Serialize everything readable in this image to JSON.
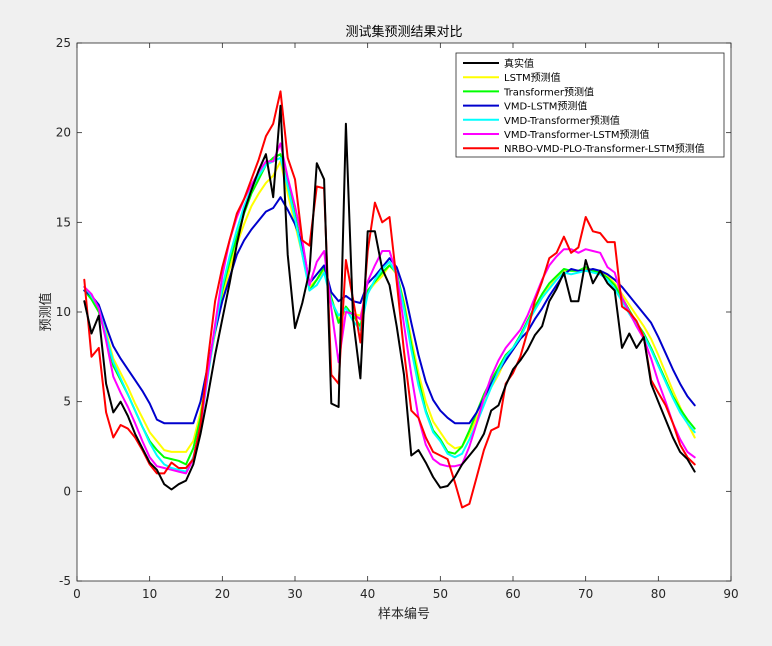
{
  "figure": {
    "background": "#f0f0f0",
    "axes_background": "#ffffff"
  },
  "chart_data": {
    "type": "line",
    "title": "测试集预测结果对比",
    "xlabel": "样本编号",
    "ylabel": "预测值",
    "xlim": [
      0,
      90
    ],
    "ylim": [
      -5,
      25
    ],
    "xticks": [
      0,
      10,
      20,
      30,
      40,
      50,
      60,
      70,
      80,
      90
    ],
    "yticks": [
      -5,
      0,
      5,
      10,
      15,
      20,
      25
    ],
    "grid": false,
    "legend_position": "top-right",
    "x": [
      1,
      2,
      3,
      4,
      5,
      6,
      7,
      8,
      9,
      10,
      11,
      12,
      13,
      14,
      15,
      16,
      17,
      18,
      19,
      20,
      21,
      22,
      23,
      24,
      25,
      26,
      27,
      28,
      29,
      30,
      31,
      32,
      33,
      34,
      35,
      36,
      37,
      38,
      39,
      40,
      41,
      42,
      43,
      44,
      45,
      46,
      47,
      48,
      49,
      50,
      51,
      52,
      53,
      54,
      55,
      56,
      57,
      58,
      59,
      60,
      61,
      62,
      63,
      64,
      65,
      66,
      67,
      68,
      69,
      70,
      71,
      72,
      73,
      74,
      75,
      76,
      77,
      78,
      79,
      80,
      81,
      82,
      83,
      84,
      85
    ],
    "series": [
      {
        "name": "真实值",
        "color": "#000000",
        "values": [
          10.6,
          8.8,
          9.8,
          6.0,
          4.4,
          5.0,
          4.2,
          3.2,
          2.4,
          1.6,
          1.2,
          0.4,
          0.1,
          0.4,
          0.6,
          1.5,
          3.2,
          5.3,
          7.6,
          9.6,
          11.6,
          13.8,
          15.6,
          16.8,
          17.9,
          18.8,
          16.4,
          21.5,
          13.2,
          9.1,
          10.5,
          12.3,
          18.3,
          17.4,
          4.9,
          4.7,
          20.5,
          9.6,
          6.3,
          14.5,
          14.5,
          12.4,
          11.5,
          9.2,
          6.5,
          2.0,
          2.3,
          1.6,
          0.8,
          0.2,
          0.3,
          0.8,
          1.5,
          2.0,
          2.5,
          3.2,
          4.5,
          4.8,
          5.9,
          6.8,
          7.3,
          7.9,
          8.7,
          9.2,
          10.6,
          11.3,
          12.2,
          10.6,
          10.6,
          12.9,
          11.6,
          12.3,
          11.6,
          11.2,
          8.0,
          8.8,
          8.0,
          8.6,
          6.0,
          5.0,
          4.0,
          3.0,
          2.2,
          1.8,
          1.1
        ]
      },
      {
        "name": "LSTM预测值",
        "color": "#ffff00",
        "values": [
          11.4,
          10.9,
          10.3,
          8.9,
          7.4,
          6.6,
          5.8,
          4.9,
          4.1,
          3.3,
          2.8,
          2.3,
          2.2,
          2.2,
          2.2,
          2.8,
          4.4,
          6.6,
          8.8,
          10.8,
          12.4,
          13.8,
          14.9,
          15.9,
          16.6,
          17.2,
          17.6,
          18.4,
          16.6,
          14.9,
          13.2,
          11.4,
          11.8,
          12.3,
          10.8,
          9.6,
          10.0,
          9.9,
          9.8,
          11.1,
          11.6,
          12.0,
          12.6,
          12.1,
          10.6,
          8.5,
          6.6,
          5.0,
          3.9,
          3.3,
          2.7,
          2.4,
          2.5,
          3.2,
          4.1,
          4.9,
          5.8,
          6.5,
          7.4,
          7.9,
          8.6,
          9.4,
          10.2,
          10.8,
          11.4,
          11.9,
          12.3,
          12.3,
          12.3,
          12.4,
          12.2,
          12.2,
          12.0,
          11.6,
          11.0,
          10.4,
          9.8,
          9.2,
          8.5,
          7.6,
          6.6,
          5.6,
          4.7,
          3.8,
          3.0
        ]
      },
      {
        "name": "Transformer预测值",
        "color": "#00ff00",
        "values": [
          11.2,
          10.7,
          10.0,
          8.6,
          7.0,
          6.2,
          5.4,
          4.5,
          3.6,
          2.8,
          2.3,
          1.9,
          1.8,
          1.7,
          1.5,
          2.4,
          4.1,
          6.6,
          9.0,
          11.2,
          12.8,
          14.2,
          15.5,
          16.6,
          17.4,
          18.2,
          18.6,
          18.8,
          17.2,
          15.4,
          13.4,
          11.2,
          11.8,
          12.5,
          10.8,
          9.4,
          10.3,
          9.8,
          9.2,
          11.2,
          11.7,
          12.2,
          12.6,
          12.2,
          10.4,
          8.2,
          6.2,
          4.5,
          3.4,
          2.9,
          2.2,
          2.1,
          2.5,
          3.4,
          4.4,
          5.4,
          6.2,
          6.9,
          7.6,
          8.0,
          8.7,
          9.5,
          10.3,
          11.0,
          11.6,
          12.0,
          12.4,
          12.3,
          12.3,
          12.5,
          12.3,
          12.2,
          11.9,
          11.5,
          10.8,
          10.1,
          9.4,
          8.8,
          8.0,
          7.1,
          6.2,
          5.3,
          4.6,
          4.0,
          3.5
        ]
      },
      {
        "name": "VMD-LSTM预测值",
        "color": "#0000cd",
        "values": [
          11.2,
          10.9,
          10.4,
          9.2,
          8.1,
          7.4,
          6.8,
          6.2,
          5.6,
          4.9,
          4.0,
          3.8,
          3.8,
          3.8,
          3.8,
          3.8,
          5.0,
          7.0,
          8.9,
          10.6,
          11.9,
          13.2,
          14.0,
          14.6,
          15.1,
          15.6,
          15.8,
          16.4,
          15.7,
          14.9,
          13.8,
          11.6,
          12.1,
          12.6,
          11.1,
          10.6,
          10.9,
          10.6,
          10.5,
          11.6,
          12.0,
          12.5,
          13.0,
          12.5,
          11.3,
          9.4,
          7.6,
          6.1,
          5.1,
          4.5,
          4.1,
          3.8,
          3.8,
          3.8,
          4.4,
          5.2,
          6.0,
          6.7,
          7.3,
          7.9,
          8.5,
          8.9,
          9.6,
          10.2,
          10.9,
          11.5,
          12.1,
          12.4,
          12.3,
          12.3,
          12.4,
          12.3,
          12.1,
          11.8,
          11.4,
          10.9,
          10.4,
          9.9,
          9.4,
          8.6,
          7.7,
          6.8,
          6.0,
          5.3,
          4.8
        ]
      },
      {
        "name": "VMD-Transformer预测值",
        "color": "#00ffff",
        "values": [
          11.4,
          10.9,
          10.2,
          8.7,
          7.2,
          6.3,
          5.4,
          4.5,
          3.6,
          2.7,
          2.0,
          1.5,
          1.3,
          1.2,
          1.1,
          1.9,
          3.6,
          6.4,
          9.0,
          11.4,
          13.1,
          14.6,
          15.9,
          16.9,
          17.6,
          18.2,
          18.4,
          18.6,
          17.0,
          15.2,
          13.2,
          11.2,
          11.5,
          12.2,
          10.6,
          9.8,
          10.2,
          9.5,
          9.0,
          11.0,
          11.8,
          12.4,
          12.8,
          12.1,
          10.2,
          7.9,
          5.9,
          4.4,
          3.3,
          2.8,
          2.1,
          1.9,
          2.1,
          2.9,
          3.8,
          4.8,
          5.8,
          6.7,
          7.5,
          8.0,
          8.6,
          9.4,
          10.1,
          10.8,
          11.3,
          11.8,
          12.2,
          12.1,
          12.2,
          12.3,
          12.2,
          12.1,
          11.8,
          11.3,
          10.6,
          9.9,
          9.3,
          8.7,
          7.9,
          7.0,
          6.1,
          5.2,
          4.4,
          3.8,
          3.3
        ]
      },
      {
        "name": "VMD-Transformer-LSTM预测值",
        "color": "#ff00ff",
        "values": [
          11.4,
          11.0,
          10.2,
          8.4,
          6.4,
          5.5,
          4.7,
          3.8,
          2.8,
          1.9,
          1.4,
          1.3,
          1.2,
          1.1,
          1.0,
          1.8,
          3.6,
          6.6,
          9.3,
          12.0,
          14.0,
          15.3,
          16.3,
          17.1,
          17.8,
          18.4,
          18.4,
          19.4,
          17.5,
          15.9,
          14.0,
          11.5,
          12.8,
          13.4,
          10.2,
          7.2,
          10.0,
          9.9,
          9.6,
          11.7,
          12.6,
          13.4,
          13.4,
          12.1,
          9.3,
          6.5,
          4.1,
          2.6,
          1.8,
          1.5,
          1.4,
          1.4,
          1.5,
          2.5,
          3.8,
          5.2,
          6.4,
          7.3,
          8.0,
          8.5,
          9.0,
          9.8,
          10.8,
          11.8,
          12.6,
          13.1,
          13.5,
          13.5,
          13.3,
          13.5,
          13.4,
          13.3,
          12.5,
          12.2,
          10.8,
          10.0,
          9.2,
          8.5,
          7.4,
          6.1,
          5.0,
          3.8,
          2.9,
          2.2,
          1.9
        ]
      },
      {
        "name": "NRBO-VMD-PLO-Transformer-LSTM预测值",
        "color": "#ff0000",
        "values": [
          11.8,
          7.5,
          8.0,
          4.4,
          3.0,
          3.7,
          3.5,
          3.0,
          2.3,
          1.5,
          1.0,
          1.0,
          1.6,
          1.3,
          1.3,
          1.8,
          3.7,
          7.3,
          10.6,
          12.5,
          14.0,
          15.5,
          16.3,
          17.4,
          18.5,
          19.8,
          20.5,
          22.3,
          18.6,
          17.4,
          14.0,
          13.7,
          17.0,
          16.9,
          6.5,
          6.0,
          12.9,
          10.7,
          8.3,
          13.4,
          16.1,
          15.0,
          15.3,
          11.7,
          7.8,
          4.5,
          4.1,
          3.0,
          2.2,
          2.0,
          1.8,
          0.5,
          -0.9,
          -0.7,
          0.8,
          2.3,
          3.4,
          3.6,
          6.0,
          6.6,
          7.5,
          8.9,
          10.6,
          11.7,
          13.0,
          13.3,
          14.2,
          13.3,
          13.6,
          15.3,
          14.5,
          14.4,
          13.9,
          13.9,
          10.3,
          10.0,
          9.5,
          8.6,
          6.2,
          5.5,
          4.8,
          3.8,
          2.6,
          1.9,
          1.5
        ]
      }
    ]
  }
}
